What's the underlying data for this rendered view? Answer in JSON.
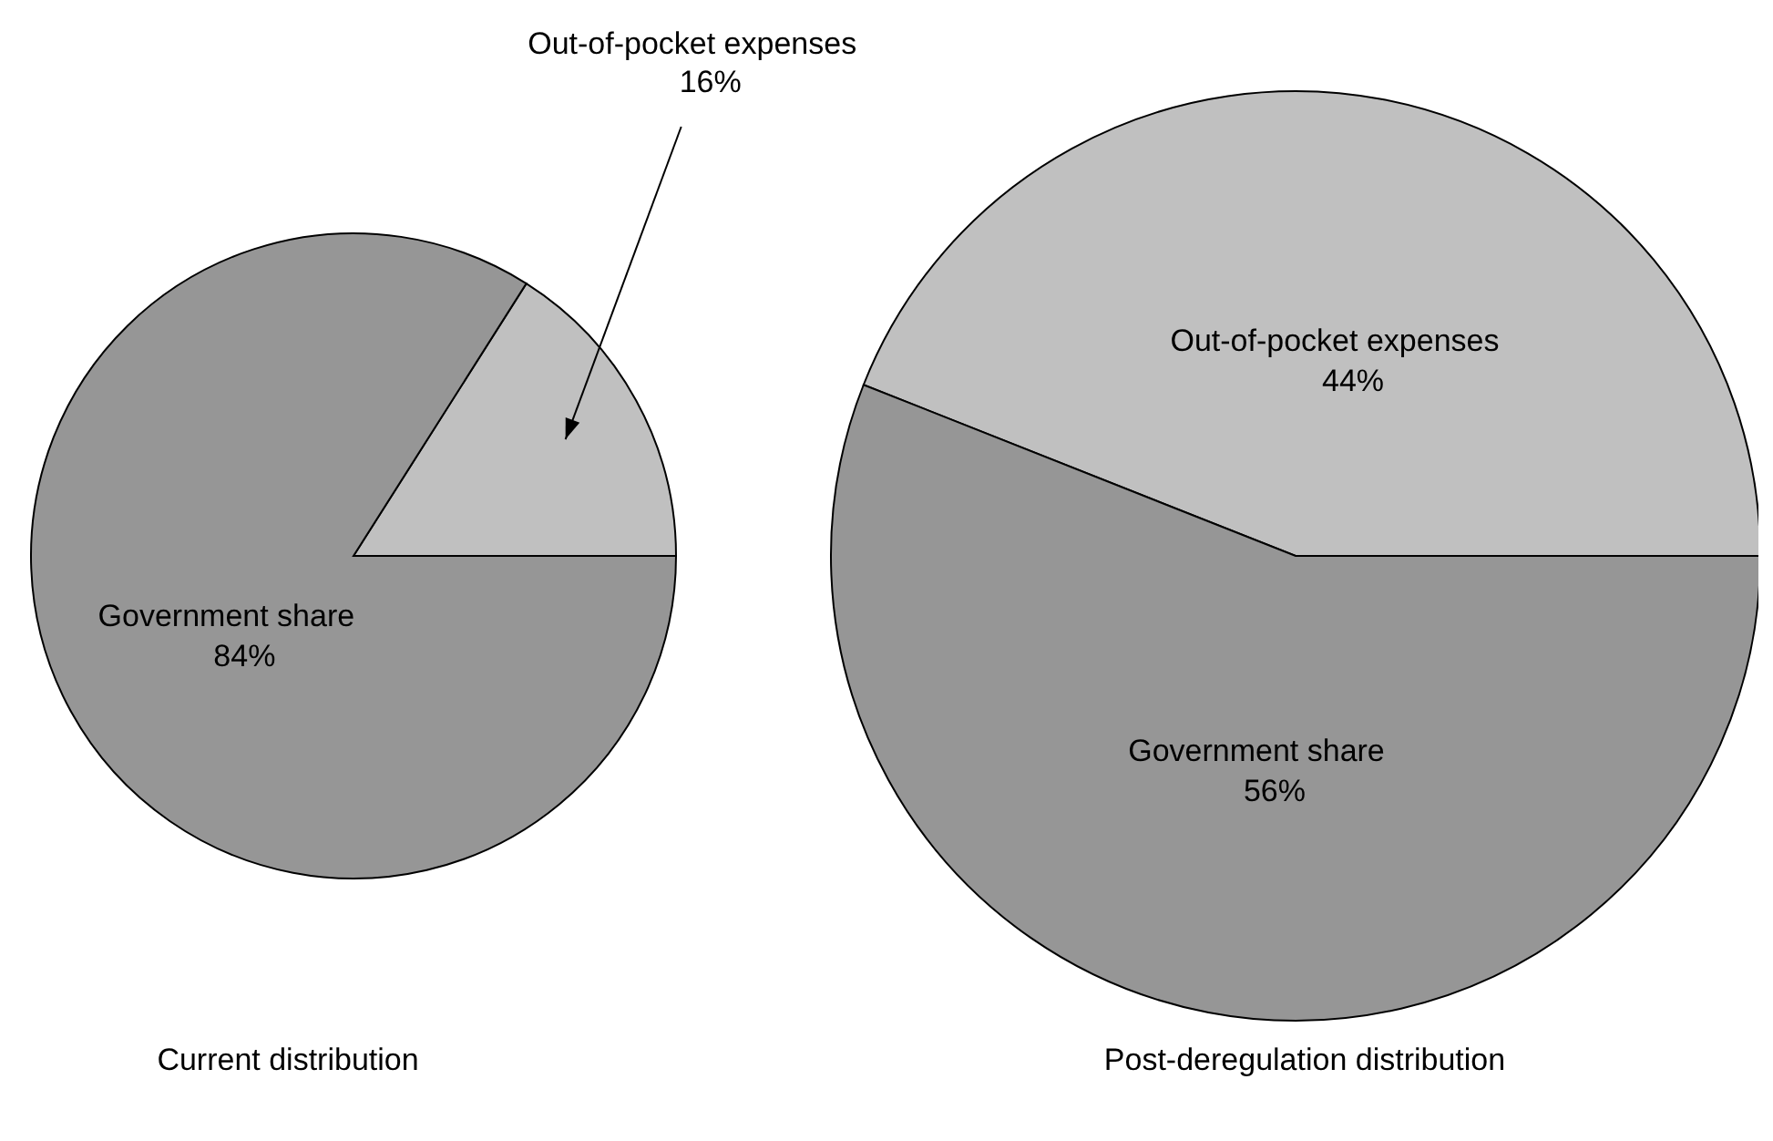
{
  "chart_data": [
    {
      "type": "pie",
      "title": "Current distribution",
      "categories": [
        "Out-of-pocket expenses",
        "Government share"
      ],
      "values": [
        16,
        84
      ],
      "value_labels": [
        "16%",
        "84%"
      ],
      "colors": [
        "#c0c0c0",
        "#969696"
      ],
      "data_labels": true,
      "legend": false
    },
    {
      "type": "pie",
      "title": "Post-deregulation distribution",
      "categories": [
        "Out-of-pocket expenses",
        "Government share"
      ],
      "values": [
        44,
        56
      ],
      "value_labels": [
        "44%",
        "56%"
      ],
      "colors": [
        "#c0c0c0",
        "#969696"
      ],
      "data_labels": true,
      "legend": false
    }
  ]
}
